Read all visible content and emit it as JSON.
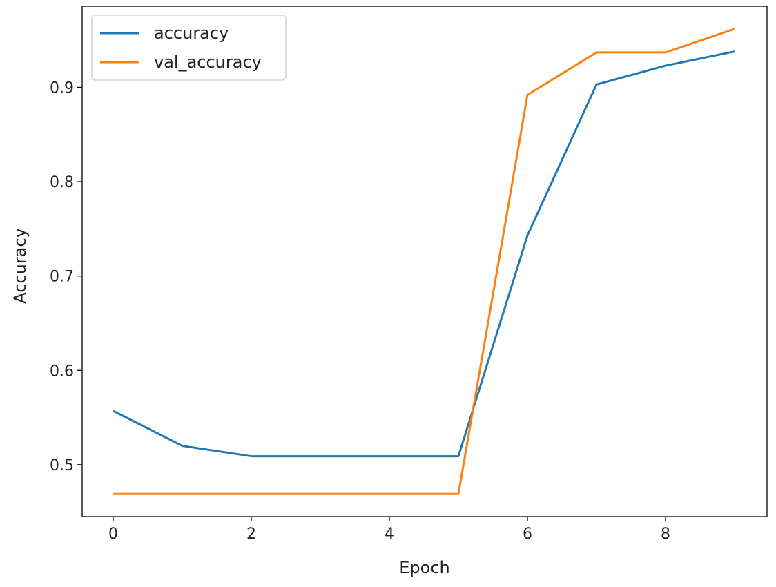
{
  "chart_data": {
    "type": "line",
    "title": "",
    "xlabel": "Epoch",
    "ylabel": "Accuracy",
    "x": [
      0,
      1,
      2,
      3,
      4,
      5,
      6,
      7,
      8,
      9
    ],
    "xlim": [
      -0.45,
      9.47
    ],
    "ylim": [
      0.445,
      0.986
    ],
    "xticks": [
      0,
      2,
      4,
      6,
      8
    ],
    "yticks": [
      0.5,
      0.6,
      0.7,
      0.8,
      0.9
    ],
    "grid": false,
    "legend_position": "top-left",
    "series": [
      {
        "name": "accuracy",
        "color": "#1f77b4",
        "values": [
          0.557,
          0.52,
          0.509,
          0.509,
          0.509,
          0.509,
          0.743,
          0.903,
          0.923,
          0.938
        ]
      },
      {
        "name": "val_accuracy",
        "color": "#ff7f0e",
        "values": [
          0.469,
          0.469,
          0.469,
          0.469,
          0.469,
          0.469,
          0.892,
          0.937,
          0.937,
          0.962
        ]
      }
    ]
  }
}
